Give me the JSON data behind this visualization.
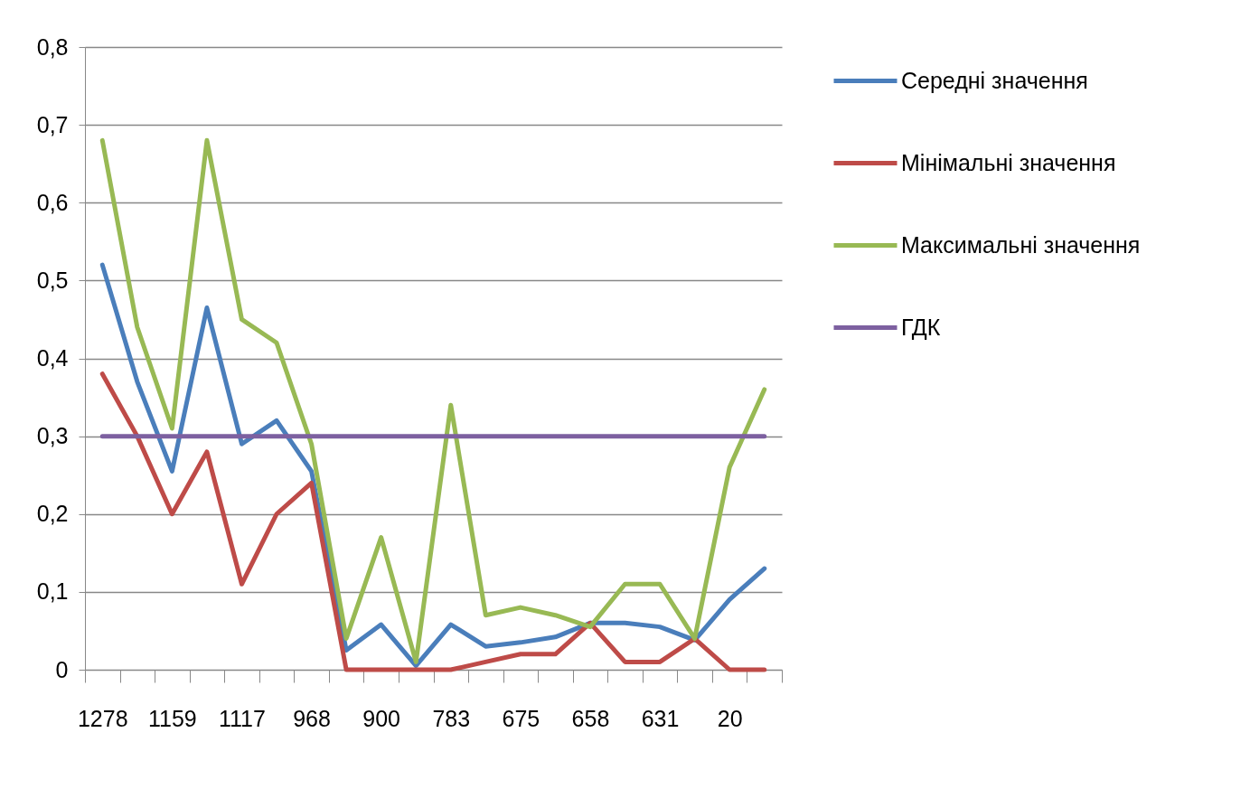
{
  "chart_data": {
    "type": "line",
    "categories": [
      "1278",
      null,
      "1159",
      null,
      "1117",
      null,
      "968",
      null,
      "900",
      null,
      "783",
      null,
      "675",
      null,
      "658",
      null,
      "631",
      null,
      "20",
      null
    ],
    "series": [
      {
        "name": "Середні значення",
        "color": "#4a7ebb",
        "values": [
          0.52,
          0.37,
          0.255,
          0.465,
          0.29,
          0.32,
          0.255,
          0.025,
          0.058,
          0.005,
          0.058,
          0.03,
          0.035,
          0.042,
          0.06,
          0.06,
          0.055,
          0.038,
          0.09,
          0.13
        ]
      },
      {
        "name": "Мінімальні значення",
        "color": "#be4b48",
        "values": [
          0.38,
          0.3,
          0.2,
          0.28,
          0.11,
          0.2,
          0.24,
          0,
          0,
          0,
          0,
          0.01,
          0.02,
          0.02,
          0.06,
          0.01,
          0.01,
          0.04,
          0,
          0
        ]
      },
      {
        "name": "Максимальні значення",
        "color": "#98b954",
        "values": [
          0.68,
          0.44,
          0.31,
          0.68,
          0.45,
          0.42,
          0.29,
          0.04,
          0.17,
          0.01,
          0.34,
          0.07,
          0.08,
          0.07,
          0.055,
          0.11,
          0.11,
          0.04,
          0.26,
          0.36
        ]
      },
      {
        "name": "ГДК",
        "color": "#7d60a0",
        "values": [
          0.3,
          0.3,
          0.3,
          0.3,
          0.3,
          0.3,
          0.3,
          0.3,
          0.3,
          0.3,
          0.3,
          0.3,
          0.3,
          0.3,
          0.3,
          0.3,
          0.3,
          0.3,
          0.3,
          0.3
        ]
      }
    ],
    "ylim": [
      0,
      0.8
    ],
    "yticks": [
      {
        "value": 0,
        "label": "0"
      },
      {
        "value": 0.1,
        "label": "0,1"
      },
      {
        "value": 0.2,
        "label": "0,2"
      },
      {
        "value": 0.3,
        "label": "0,3"
      },
      {
        "value": 0.4,
        "label": "0,4"
      },
      {
        "value": 0.5,
        "label": "0,5"
      },
      {
        "value": 0.6,
        "label": "0,6"
      },
      {
        "value": 0.7,
        "label": "0,7"
      },
      {
        "value": 0.8,
        "label": "0,8"
      }
    ],
    "grid": "y",
    "legend": "right",
    "marker": "none",
    "line_style": "solid"
  }
}
